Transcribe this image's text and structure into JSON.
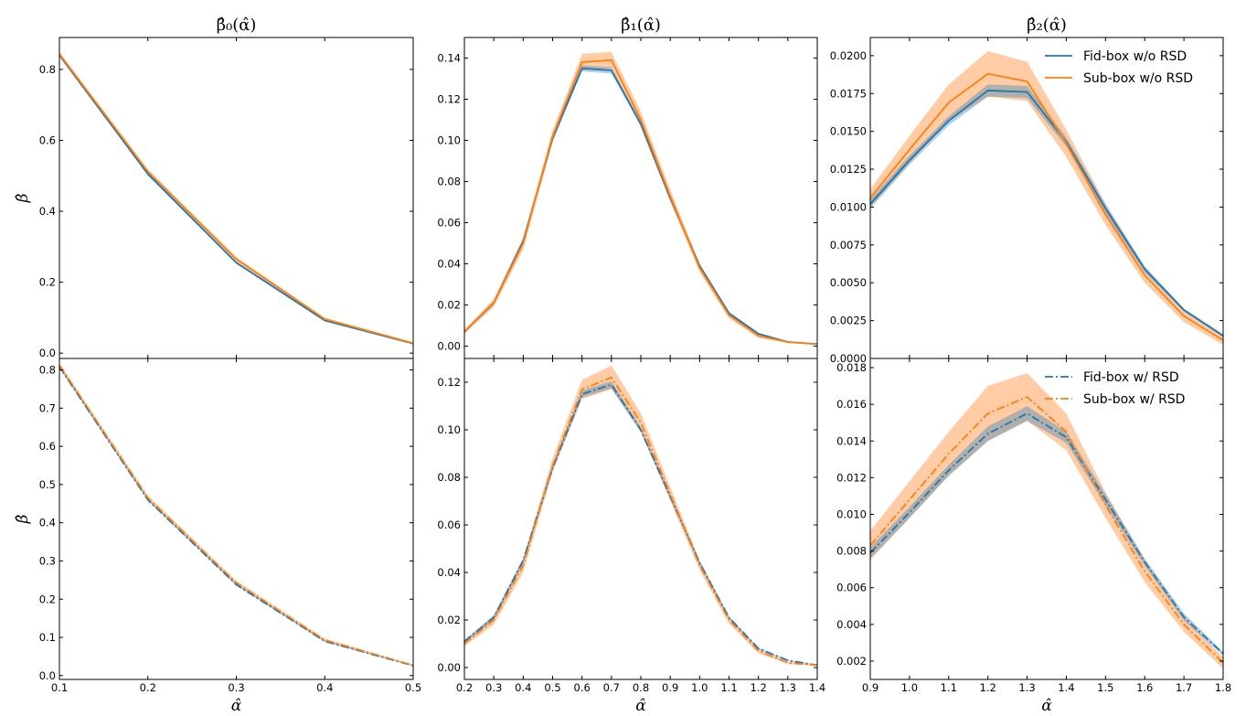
{
  "colors": {
    "fid": "#1f77b4",
    "sub": "#ff7f0e",
    "fid_band": "#1f77b4",
    "sub_band": "#ffbb88"
  },
  "chart_data": [
    {
      "type": "line",
      "col": 0,
      "row": 0,
      "title": "β̂₀(α̂)",
      "ylabel": "β̂",
      "xlabel": "",
      "xlim": [
        0.1,
        0.5
      ],
      "ylim": [
        -0.015,
        0.89
      ],
      "xticks": [
        0.1,
        0.2,
        0.3,
        0.4,
        0.5
      ],
      "xtick_labels": [],
      "yticks": [
        0.0,
        0.2,
        0.4,
        0.6,
        0.8
      ],
      "ytick_labels": [
        "0.0",
        "0.2",
        "0.4",
        "0.6",
        "0.8"
      ],
      "x": [
        0.1,
        0.2,
        0.3,
        0.4,
        0.5
      ],
      "series": [
        {
          "name": "Fid-box w/o RSD",
          "key": "fid",
          "dash": "solid",
          "values": [
            0.84,
            0.505,
            0.255,
            0.092,
            0.027
          ],
          "err": [
            0.003,
            0.003,
            0.003,
            0.002,
            0.001
          ]
        },
        {
          "name": "Sub-box w/o RSD",
          "key": "sub",
          "dash": "solid",
          "values": [
            0.843,
            0.512,
            0.265,
            0.096,
            0.028
          ],
          "err": [
            0.006,
            0.006,
            0.006,
            0.004,
            0.002
          ]
        }
      ],
      "legend": false
    },
    {
      "type": "line",
      "col": 1,
      "row": 0,
      "title": "β̂₁(α̂)",
      "ylabel": "",
      "xlabel": "",
      "xlim": [
        0.2,
        1.4
      ],
      "ylim": [
        -0.006,
        0.15
      ],
      "xticks": [
        0.2,
        0.3,
        0.4,
        0.5,
        0.6,
        0.7,
        0.8,
        0.9,
        1.0,
        1.1,
        1.2,
        1.3,
        1.4
      ],
      "xtick_labels": [],
      "yticks": [
        0.0,
        0.02,
        0.04,
        0.06,
        0.08,
        0.1,
        0.12,
        0.14
      ],
      "ytick_labels": [
        "0.00",
        "0.02",
        "0.04",
        "0.06",
        "0.08",
        "0.10",
        "0.12",
        "0.14"
      ],
      "x": [
        0.2,
        0.3,
        0.4,
        0.5,
        0.6,
        0.7,
        0.8,
        0.9,
        1.0,
        1.1,
        1.2,
        1.3,
        1.4
      ],
      "series": [
        {
          "name": "Fid-box w/o RSD",
          "key": "fid",
          "dash": "solid",
          "values": [
            0.007,
            0.021,
            0.051,
            0.101,
            0.135,
            0.134,
            0.108,
            0.072,
            0.039,
            0.016,
            0.006,
            0.002,
            0.001
          ],
          "err": [
            0.0005,
            0.001,
            0.001,
            0.001,
            0.0015,
            0.0015,
            0.001,
            0.001,
            0.001,
            0.0005,
            0.0003,
            0.0002,
            0.0001
          ]
        },
        {
          "name": "Sub-box w/o RSD",
          "key": "sub",
          "dash": "solid",
          "values": [
            0.007,
            0.021,
            0.05,
            0.102,
            0.138,
            0.139,
            0.11,
            0.073,
            0.038,
            0.015,
            0.005,
            0.002,
            0.001
          ],
          "err": [
            0.001,
            0.002,
            0.003,
            0.003,
            0.004,
            0.004,
            0.004,
            0.003,
            0.002,
            0.0015,
            0.001,
            0.0005,
            0.0003
          ]
        }
      ],
      "legend": false
    },
    {
      "type": "line",
      "col": 2,
      "row": 0,
      "title": "β̂₂(α̂)",
      "ylabel": "",
      "xlabel": "",
      "xlim": [
        0.9,
        1.8
      ],
      "ylim": [
        0.0,
        0.0212
      ],
      "xticks": [
        0.9,
        1.0,
        1.1,
        1.2,
        1.3,
        1.4,
        1.5,
        1.6,
        1.7,
        1.8
      ],
      "xtick_labels": [],
      "yticks": [
        0.0,
        0.0025,
        0.005,
        0.0075,
        0.01,
        0.0125,
        0.015,
        0.0175,
        0.02
      ],
      "ytick_labels": [
        "0.0000",
        "0.0025",
        "0.0050",
        "0.0075",
        "0.0100",
        "0.0125",
        "0.0150",
        "0.0175",
        "0.0200"
      ],
      "x": [
        0.9,
        1.0,
        1.1,
        1.2,
        1.3,
        1.4,
        1.5,
        1.6,
        1.7,
        1.8
      ],
      "series": [
        {
          "name": "Fid-box w/o RSD",
          "key": "fid",
          "dash": "solid",
          "values": [
            0.0102,
            0.0131,
            0.0157,
            0.0177,
            0.0176,
            0.0143,
            0.0099,
            0.0059,
            0.0032,
            0.0015
          ],
          "err": [
            0.0003,
            0.0003,
            0.0003,
            0.0004,
            0.0004,
            0.0003,
            0.0003,
            0.0002,
            0.0001,
            0.0001
          ]
        },
        {
          "name": "Sub-box w/o RSD",
          "key": "sub",
          "dash": "solid",
          "values": [
            0.0106,
            0.0138,
            0.0169,
            0.0188,
            0.0183,
            0.0142,
            0.0095,
            0.0055,
            0.0028,
            0.0012
          ],
          "err": [
            0.0006,
            0.0009,
            0.0012,
            0.0015,
            0.0013,
            0.0009,
            0.0007,
            0.0005,
            0.0004,
            0.0003
          ]
        }
      ],
      "legend": true
    },
    {
      "type": "line",
      "col": 0,
      "row": 1,
      "title": "",
      "ylabel": "β̂",
      "xlabel": "α̂",
      "xlim": [
        0.1,
        0.5
      ],
      "ylim": [
        -0.01,
        0.83
      ],
      "xticks": [
        0.1,
        0.2,
        0.3,
        0.4,
        0.5
      ],
      "xtick_labels": [
        "0.1",
        "0.2",
        "0.3",
        "0.4",
        "0.5"
      ],
      "yticks": [
        0.0,
        0.1,
        0.2,
        0.3,
        0.4,
        0.5,
        0.6,
        0.7,
        0.8
      ],
      "ytick_labels": [
        "0.0",
        "0.1",
        "0.2",
        "0.3",
        "0.4",
        "0.5",
        "0.6",
        "0.7",
        "0.8"
      ],
      "x": [
        0.1,
        0.2,
        0.3,
        0.4,
        0.5
      ],
      "series": [
        {
          "name": "Fid-box w/ RSD",
          "key": "fid",
          "dash": "dashdot",
          "values": [
            0.808,
            0.46,
            0.238,
            0.09,
            0.026
          ],
          "err": [
            0.003,
            0.003,
            0.003,
            0.002,
            0.001
          ]
        },
        {
          "name": "Sub-box w/ RSD",
          "key": "sub",
          "dash": "dashdot",
          "values": [
            0.812,
            0.465,
            0.243,
            0.093,
            0.027
          ],
          "err": [
            0.006,
            0.006,
            0.005,
            0.004,
            0.002
          ]
        }
      ],
      "legend": false
    },
    {
      "type": "line",
      "col": 1,
      "row": 1,
      "title": "",
      "ylabel": "",
      "xlabel": "α̂",
      "xlim": [
        0.2,
        1.4
      ],
      "ylim": [
        -0.005,
        0.13
      ],
      "xticks": [
        0.2,
        0.3,
        0.4,
        0.5,
        0.6,
        0.7,
        0.8,
        0.9,
        1.0,
        1.1,
        1.2,
        1.3,
        1.4
      ],
      "xtick_labels": [
        "0.2",
        "0.3",
        "0.4",
        "0.5",
        "0.6",
        "0.7",
        "0.8",
        "0.9",
        "1.0",
        "1.1",
        "1.2",
        "1.3",
        "1.4"
      ],
      "yticks": [
        0.0,
        0.02,
        0.04,
        0.06,
        0.08,
        0.1,
        0.12
      ],
      "ytick_labels": [
        "0.00",
        "0.02",
        "0.04",
        "0.06",
        "0.08",
        "0.10",
        "0.12"
      ],
      "x": [
        0.2,
        0.3,
        0.4,
        0.5,
        0.6,
        0.7,
        0.8,
        0.9,
        1.0,
        1.1,
        1.2,
        1.3,
        1.4
      ],
      "series": [
        {
          "name": "Fid-box w/ RSD",
          "key": "fid",
          "dash": "dashdot",
          "values": [
            0.011,
            0.021,
            0.045,
            0.084,
            0.115,
            0.119,
            0.1,
            0.072,
            0.044,
            0.021,
            0.008,
            0.003,
            0.001
          ],
          "err": [
            0.0005,
            0.001,
            0.001,
            0.001,
            0.0015,
            0.0015,
            0.001,
            0.001,
            0.001,
            0.0005,
            0.0003,
            0.0002,
            0.0001
          ]
        },
        {
          "name": "Sub-box w/ RSD",
          "key": "sub",
          "dash": "dashdot",
          "values": [
            0.01,
            0.02,
            0.043,
            0.085,
            0.117,
            0.122,
            0.103,
            0.073,
            0.043,
            0.02,
            0.007,
            0.002,
            0.001
          ],
          "err": [
            0.001,
            0.002,
            0.003,
            0.003,
            0.004,
            0.005,
            0.004,
            0.003,
            0.002,
            0.0015,
            0.001,
            0.0005,
            0.0003
          ]
        }
      ],
      "legend": false
    },
    {
      "type": "line",
      "col": 2,
      "row": 1,
      "title": "",
      "ylabel": "",
      "xlabel": "α̂",
      "xlim": [
        0.9,
        1.8
      ],
      "ylim": [
        0.001,
        0.0185
      ],
      "xticks": [
        0.9,
        1.0,
        1.1,
        1.2,
        1.3,
        1.4,
        1.5,
        1.6,
        1.7,
        1.8
      ],
      "xtick_labels": [
        "0.9",
        "1.0",
        "1.1",
        "1.2",
        "1.3",
        "1.4",
        "1.5",
        "1.6",
        "1.7",
        "1.8"
      ],
      "yticks": [
        0.002,
        0.004,
        0.006,
        0.008,
        0.01,
        0.012,
        0.014,
        0.016,
        0.018
      ],
      "ytick_labels": [
        "0.002",
        "0.004",
        "0.006",
        "0.008",
        "0.010",
        "0.012",
        "0.014",
        "0.016",
        "0.018"
      ],
      "x": [
        0.9,
        1.0,
        1.1,
        1.2,
        1.3,
        1.4,
        1.5,
        1.6,
        1.7,
        1.8
      ],
      "series": [
        {
          "name": "Fid-box w/ RSD",
          "key": "fid",
          "dash": "dashdot",
          "values": [
            0.0079,
            0.0101,
            0.0124,
            0.0144,
            0.0155,
            0.0142,
            0.0108,
            0.0074,
            0.0044,
            0.0024
          ],
          "err": [
            0.0003,
            0.0003,
            0.0003,
            0.0004,
            0.0004,
            0.0003,
            0.0003,
            0.0002,
            0.0002,
            0.0001
          ]
        },
        {
          "name": "Sub-box w/ RSD",
          "key": "sub",
          "dash": "dashdot",
          "values": [
            0.0083,
            0.0108,
            0.0133,
            0.0155,
            0.0164,
            0.0145,
            0.0105,
            0.0069,
            0.004,
            0.0019
          ],
          "err": [
            0.0008,
            0.001,
            0.0012,
            0.0015,
            0.0013,
            0.001,
            0.0007,
            0.0006,
            0.0004,
            0.0003
          ]
        }
      ],
      "legend": true
    }
  ]
}
